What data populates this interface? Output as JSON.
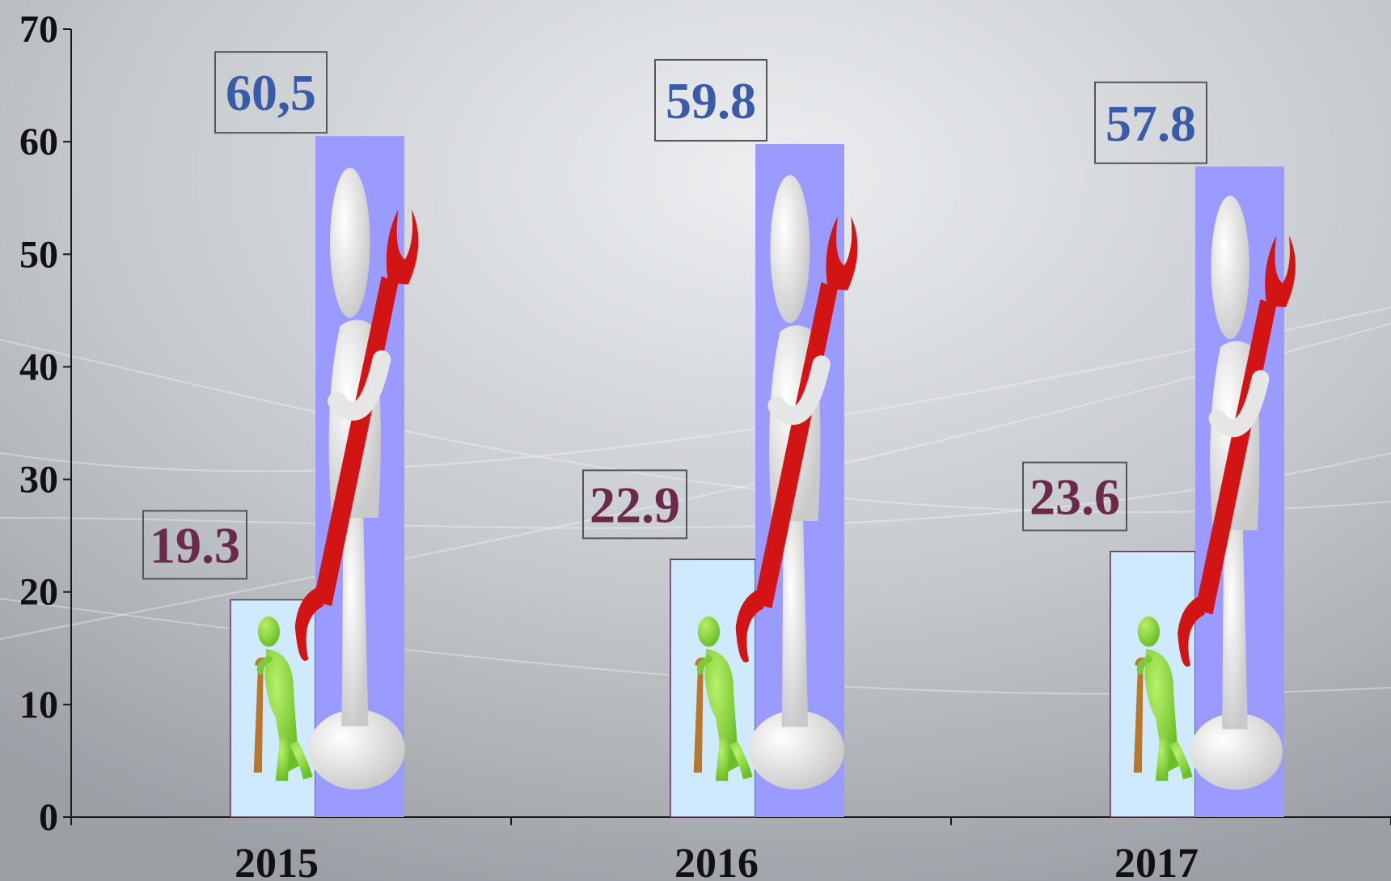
{
  "chart_data": {
    "type": "bar",
    "categories": [
      "2015",
      "2016",
      "2017"
    ],
    "series": [
      {
        "values": [
          19.3,
          22.9,
          23.6
        ],
        "labels": [
          "19.3",
          "22.9",
          "23.6"
        ],
        "color": "#cfeafc",
        "label_color": "#6b2a4a",
        "icon": "elderly-person-with-cane-icon"
      },
      {
        "values": [
          60.5,
          59.8,
          57.8
        ],
        "labels": [
          "60,5",
          "59.8",
          "57.8"
        ],
        "color": "#9b9bff",
        "label_color": "#3a5ba8",
        "icon": "person-with-red-wrench-icon"
      }
    ],
    "ylim": [
      0,
      70
    ],
    "yticks": [
      "0",
      "10",
      "20",
      "30",
      "40",
      "50",
      "60",
      "70"
    ],
    "title": "",
    "xlabel": "",
    "ylabel": "",
    "grid": false,
    "background": "#c9ccd0"
  }
}
